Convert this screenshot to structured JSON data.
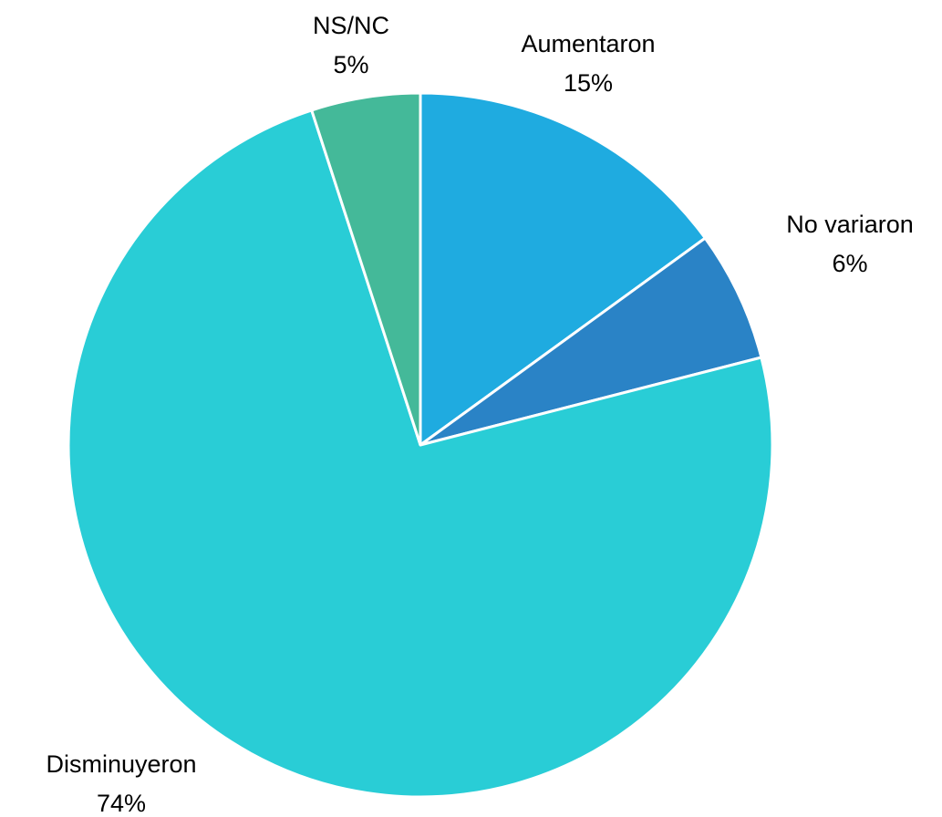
{
  "chart_data": {
    "type": "pie",
    "categories": [
      "Aumentaron",
      "No variaron",
      "Disminuyeron",
      "NS/NC"
    ],
    "values": [
      15,
      6,
      74,
      5
    ],
    "value_labels": [
      "15%",
      "6%",
      "74%",
      "5%"
    ],
    "colors": [
      "#1fabe0",
      "#2a83c6",
      "#29cdd6",
      "#44b999"
    ]
  }
}
